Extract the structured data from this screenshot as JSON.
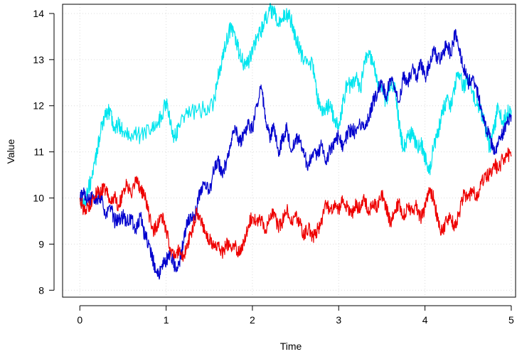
{
  "chart_data": {
    "type": "line",
    "title": "",
    "xlabel": "Time",
    "ylabel": "Value",
    "xlim": [
      -0.2,
      5.05
    ],
    "ylim": [
      7.85,
      14.2
    ],
    "x_ticks": [
      0,
      1,
      2,
      3,
      4,
      5
    ],
    "y_ticks": [
      8,
      9,
      10,
      11,
      12,
      13,
      14
    ],
    "x_tick_labels": [
      "0",
      "1",
      "2",
      "3",
      "4",
      "5"
    ],
    "y_tick_labels": [
      "8",
      "9",
      "10",
      "11",
      "12",
      "13",
      "14"
    ],
    "grid": true,
    "legend": "none",
    "series": [
      {
        "color": "#00e5ee",
        "noise": 0.18,
        "points": [
          [
            0,
            10.0
          ],
          [
            0.05,
            9.85
          ],
          [
            0.1,
            10.2
          ],
          [
            0.15,
            10.5
          ],
          [
            0.2,
            11.0
          ],
          [
            0.25,
            11.6
          ],
          [
            0.3,
            11.75
          ],
          [
            0.35,
            11.9
          ],
          [
            0.4,
            11.5
          ],
          [
            0.45,
            11.6
          ],
          [
            0.5,
            11.45
          ],
          [
            0.6,
            11.4
          ],
          [
            0.7,
            11.35
          ],
          [
            0.8,
            11.5
          ],
          [
            0.9,
            11.6
          ],
          [
            0.95,
            11.8
          ],
          [
            1.0,
            12.1
          ],
          [
            1.05,
            11.6
          ],
          [
            1.1,
            11.3
          ],
          [
            1.15,
            11.6
          ],
          [
            1.25,
            11.9
          ],
          [
            1.35,
            11.85
          ],
          [
            1.45,
            11.95
          ],
          [
            1.55,
            12.05
          ],
          [
            1.6,
            12.6
          ],
          [
            1.65,
            13.0
          ],
          [
            1.7,
            13.4
          ],
          [
            1.75,
            13.7
          ],
          [
            1.8,
            13.5
          ],
          [
            1.85,
            13.1
          ],
          [
            1.9,
            12.9
          ],
          [
            1.95,
            12.9
          ],
          [
            2.0,
            13.2
          ],
          [
            2.05,
            13.5
          ],
          [
            2.1,
            13.6
          ],
          [
            2.15,
            13.85
          ],
          [
            2.2,
            14.05
          ],
          [
            2.25,
            14.0
          ],
          [
            2.3,
            13.75
          ],
          [
            2.35,
            13.9
          ],
          [
            2.4,
            14.0
          ],
          [
            2.45,
            13.85
          ],
          [
            2.5,
            13.5
          ],
          [
            2.55,
            13.2
          ],
          [
            2.6,
            12.95
          ],
          [
            2.7,
            12.9
          ],
          [
            2.75,
            12.2
          ],
          [
            2.8,
            11.9
          ],
          [
            2.85,
            11.95
          ],
          [
            2.9,
            12.0
          ],
          [
            2.95,
            11.7
          ],
          [
            3.0,
            11.5
          ],
          [
            3.05,
            12.1
          ],
          [
            3.1,
            12.5
          ],
          [
            3.15,
            12.4
          ],
          [
            3.2,
            12.6
          ],
          [
            3.25,
            12.35
          ],
          [
            3.3,
            12.95
          ],
          [
            3.35,
            13.2
          ],
          [
            3.4,
            12.9
          ],
          [
            3.45,
            12.5
          ],
          [
            3.5,
            12.3
          ],
          [
            3.55,
            12.1
          ],
          [
            3.6,
            12.45
          ],
          [
            3.65,
            12.5
          ],
          [
            3.7,
            11.6
          ],
          [
            3.75,
            11.05
          ],
          [
            3.8,
            11.3
          ],
          [
            3.85,
            11.4
          ],
          [
            3.9,
            11.1
          ],
          [
            3.95,
            11.2
          ],
          [
            4.0,
            10.9
          ],
          [
            4.05,
            10.55
          ],
          [
            4.1,
            11.1
          ],
          [
            4.15,
            11.4
          ],
          [
            4.2,
            11.9
          ],
          [
            4.25,
            12.1
          ],
          [
            4.3,
            12.0
          ],
          [
            4.35,
            12.5
          ],
          [
            4.4,
            12.7
          ],
          [
            4.45,
            12.4
          ],
          [
            4.5,
            12.6
          ],
          [
            4.55,
            12.3
          ],
          [
            4.6,
            12.0
          ],
          [
            4.65,
            11.9
          ],
          [
            4.7,
            11.5
          ],
          [
            4.75,
            11.1
          ],
          [
            4.8,
            11.5
          ],
          [
            4.85,
            12.0
          ],
          [
            4.9,
            11.6
          ],
          [
            4.95,
            11.85
          ],
          [
            5.0,
            11.9
          ]
        ]
      },
      {
        "color": "#0000cd",
        "noise": 0.16,
        "points": [
          [
            0,
            10.0
          ],
          [
            0.05,
            10.1
          ],
          [
            0.1,
            9.9
          ],
          [
            0.15,
            10.05
          ],
          [
            0.2,
            10.0
          ],
          [
            0.25,
            10.05
          ],
          [
            0.3,
            9.55
          ],
          [
            0.35,
            9.85
          ],
          [
            0.4,
            9.5
          ],
          [
            0.45,
            9.55
          ],
          [
            0.5,
            9.6
          ],
          [
            0.55,
            9.5
          ],
          [
            0.6,
            9.55
          ],
          [
            0.65,
            9.3
          ],
          [
            0.7,
            9.6
          ],
          [
            0.75,
            9.2
          ],
          [
            0.8,
            9.0
          ],
          [
            0.85,
            8.65
          ],
          [
            0.9,
            8.3
          ],
          [
            0.95,
            8.5
          ],
          [
            1.0,
            8.65
          ],
          [
            1.05,
            8.8
          ],
          [
            1.1,
            8.5
          ],
          [
            1.15,
            8.55
          ],
          [
            1.2,
            9.05
          ],
          [
            1.25,
            9.5
          ],
          [
            1.3,
            9.55
          ],
          [
            1.35,
            9.7
          ],
          [
            1.4,
            10.2
          ],
          [
            1.45,
            10.35
          ],
          [
            1.5,
            10.1
          ],
          [
            1.55,
            10.6
          ],
          [
            1.6,
            10.8
          ],
          [
            1.65,
            10.5
          ],
          [
            1.7,
            10.8
          ],
          [
            1.75,
            11.2
          ],
          [
            1.8,
            11.55
          ],
          [
            1.85,
            11.2
          ],
          [
            1.9,
            11.4
          ],
          [
            1.95,
            11.6
          ],
          [
            2.0,
            11.5
          ],
          [
            2.05,
            12.0
          ],
          [
            2.1,
            12.45
          ],
          [
            2.15,
            11.8
          ],
          [
            2.2,
            11.3
          ],
          [
            2.25,
            11.5
          ],
          [
            2.3,
            11.0
          ],
          [
            2.35,
            11.3
          ],
          [
            2.4,
            11.55
          ],
          [
            2.45,
            11.0
          ],
          [
            2.5,
            11.3
          ],
          [
            2.55,
            11.2
          ],
          [
            2.6,
            10.9
          ],
          [
            2.65,
            10.7
          ],
          [
            2.7,
            11.0
          ],
          [
            2.75,
            10.95
          ],
          [
            2.8,
            11.15
          ],
          [
            2.85,
            10.8
          ],
          [
            2.9,
            11.05
          ],
          [
            2.95,
            11.2
          ],
          [
            3.0,
            11.35
          ],
          [
            3.05,
            11.1
          ],
          [
            3.1,
            11.4
          ],
          [
            3.15,
            11.5
          ],
          [
            3.2,
            11.4
          ],
          [
            3.25,
            11.6
          ],
          [
            3.3,
            11.5
          ],
          [
            3.35,
            11.75
          ],
          [
            3.4,
            12.1
          ],
          [
            3.45,
            12.3
          ],
          [
            3.5,
            12.5
          ],
          [
            3.55,
            12.2
          ],
          [
            3.6,
            12.6
          ],
          [
            3.65,
            12.3
          ],
          [
            3.7,
            12.1
          ],
          [
            3.75,
            12.65
          ],
          [
            3.8,
            12.5
          ],
          [
            3.85,
            12.8
          ],
          [
            3.9,
            12.6
          ],
          [
            3.95,
            13.0
          ],
          [
            4.0,
            12.6
          ],
          [
            4.05,
            12.9
          ],
          [
            4.1,
            13.2
          ],
          [
            4.15,
            13.0
          ],
          [
            4.2,
            13.1
          ],
          [
            4.25,
            13.35
          ],
          [
            4.3,
            13.1
          ],
          [
            4.35,
            13.6
          ],
          [
            4.4,
            13.2
          ],
          [
            4.45,
            12.8
          ],
          [
            4.5,
            12.5
          ],
          [
            4.55,
            12.6
          ],
          [
            4.6,
            12.35
          ],
          [
            4.65,
            12.0
          ],
          [
            4.7,
            11.6
          ],
          [
            4.75,
            11.3
          ],
          [
            4.8,
            11.0
          ],
          [
            4.85,
            11.15
          ],
          [
            4.9,
            11.4
          ],
          [
            4.95,
            11.6
          ],
          [
            5.0,
            11.8
          ]
        ]
      },
      {
        "color": "#ee0000",
        "noise": 0.15,
        "points": [
          [
            0,
            10.0
          ],
          [
            0.05,
            9.7
          ],
          [
            0.1,
            9.8
          ],
          [
            0.15,
            10.0
          ],
          [
            0.2,
            10.1
          ],
          [
            0.25,
            10.15
          ],
          [
            0.3,
            10.2
          ],
          [
            0.35,
            9.9
          ],
          [
            0.4,
            10.05
          ],
          [
            0.45,
            9.8
          ],
          [
            0.5,
            10.15
          ],
          [
            0.55,
            10.3
          ],
          [
            0.6,
            10.0
          ],
          [
            0.65,
            10.45
          ],
          [
            0.7,
            10.2
          ],
          [
            0.75,
            10.05
          ],
          [
            0.8,
            9.65
          ],
          [
            0.85,
            9.3
          ],
          [
            0.9,
            9.4
          ],
          [
            0.95,
            9.6
          ],
          [
            1.0,
            9.3
          ],
          [
            1.05,
            8.9
          ],
          [
            1.1,
            8.7
          ],
          [
            1.15,
            8.9
          ],
          [
            1.2,
            8.7
          ],
          [
            1.25,
            9.0
          ],
          [
            1.3,
            9.3
          ],
          [
            1.35,
            9.7
          ],
          [
            1.4,
            9.55
          ],
          [
            1.45,
            9.3
          ],
          [
            1.5,
            9.1
          ],
          [
            1.55,
            8.95
          ],
          [
            1.6,
            9.0
          ],
          [
            1.65,
            8.8
          ],
          [
            1.7,
            9.0
          ],
          [
            1.75,
            8.9
          ],
          [
            1.8,
            8.95
          ],
          [
            1.85,
            8.8
          ],
          [
            1.9,
            9.05
          ],
          [
            1.95,
            9.4
          ],
          [
            2.0,
            9.6
          ],
          [
            2.05,
            9.5
          ],
          [
            2.1,
            9.55
          ],
          [
            2.15,
            9.3
          ],
          [
            2.2,
            9.55
          ],
          [
            2.25,
            9.7
          ],
          [
            2.3,
            9.35
          ],
          [
            2.35,
            9.5
          ],
          [
            2.4,
            9.75
          ],
          [
            2.45,
            9.45
          ],
          [
            2.5,
            9.6
          ],
          [
            2.55,
            9.45
          ],
          [
            2.6,
            9.2
          ],
          [
            2.65,
            9.35
          ],
          [
            2.7,
            9.15
          ],
          [
            2.75,
            9.3
          ],
          [
            2.8,
            9.45
          ],
          [
            2.85,
            9.9
          ],
          [
            2.9,
            9.7
          ],
          [
            2.95,
            9.85
          ],
          [
            3.0,
            9.75
          ],
          [
            3.05,
            9.95
          ],
          [
            3.1,
            9.8
          ],
          [
            3.15,
            9.6
          ],
          [
            3.2,
            9.85
          ],
          [
            3.25,
            9.75
          ],
          [
            3.3,
            10.0
          ],
          [
            3.35,
            9.7
          ],
          [
            3.4,
            9.9
          ],
          [
            3.45,
            9.8
          ],
          [
            3.5,
            10.1
          ],
          [
            3.55,
            9.8
          ],
          [
            3.6,
            9.45
          ],
          [
            3.65,
            9.75
          ],
          [
            3.7,
            9.9
          ],
          [
            3.75,
            9.6
          ],
          [
            3.8,
            9.8
          ],
          [
            3.85,
            9.7
          ],
          [
            3.9,
            9.85
          ],
          [
            3.95,
            9.55
          ],
          [
            4.0,
            9.8
          ],
          [
            4.05,
            10.2
          ],
          [
            4.1,
            10.0
          ],
          [
            4.15,
            9.5
          ],
          [
            4.2,
            9.25
          ],
          [
            4.25,
            9.5
          ],
          [
            4.3,
            9.55
          ],
          [
            4.35,
            9.35
          ],
          [
            4.4,
            9.7
          ],
          [
            4.45,
            10.1
          ],
          [
            4.5,
            10.0
          ],
          [
            4.55,
            10.2
          ],
          [
            4.6,
            10.0
          ],
          [
            4.65,
            10.3
          ],
          [
            4.7,
            10.5
          ],
          [
            4.75,
            10.5
          ],
          [
            4.8,
            10.75
          ],
          [
            4.85,
            10.6
          ],
          [
            4.9,
            10.85
          ],
          [
            4.95,
            10.95
          ],
          [
            5.0,
            10.9
          ]
        ]
      }
    ]
  }
}
